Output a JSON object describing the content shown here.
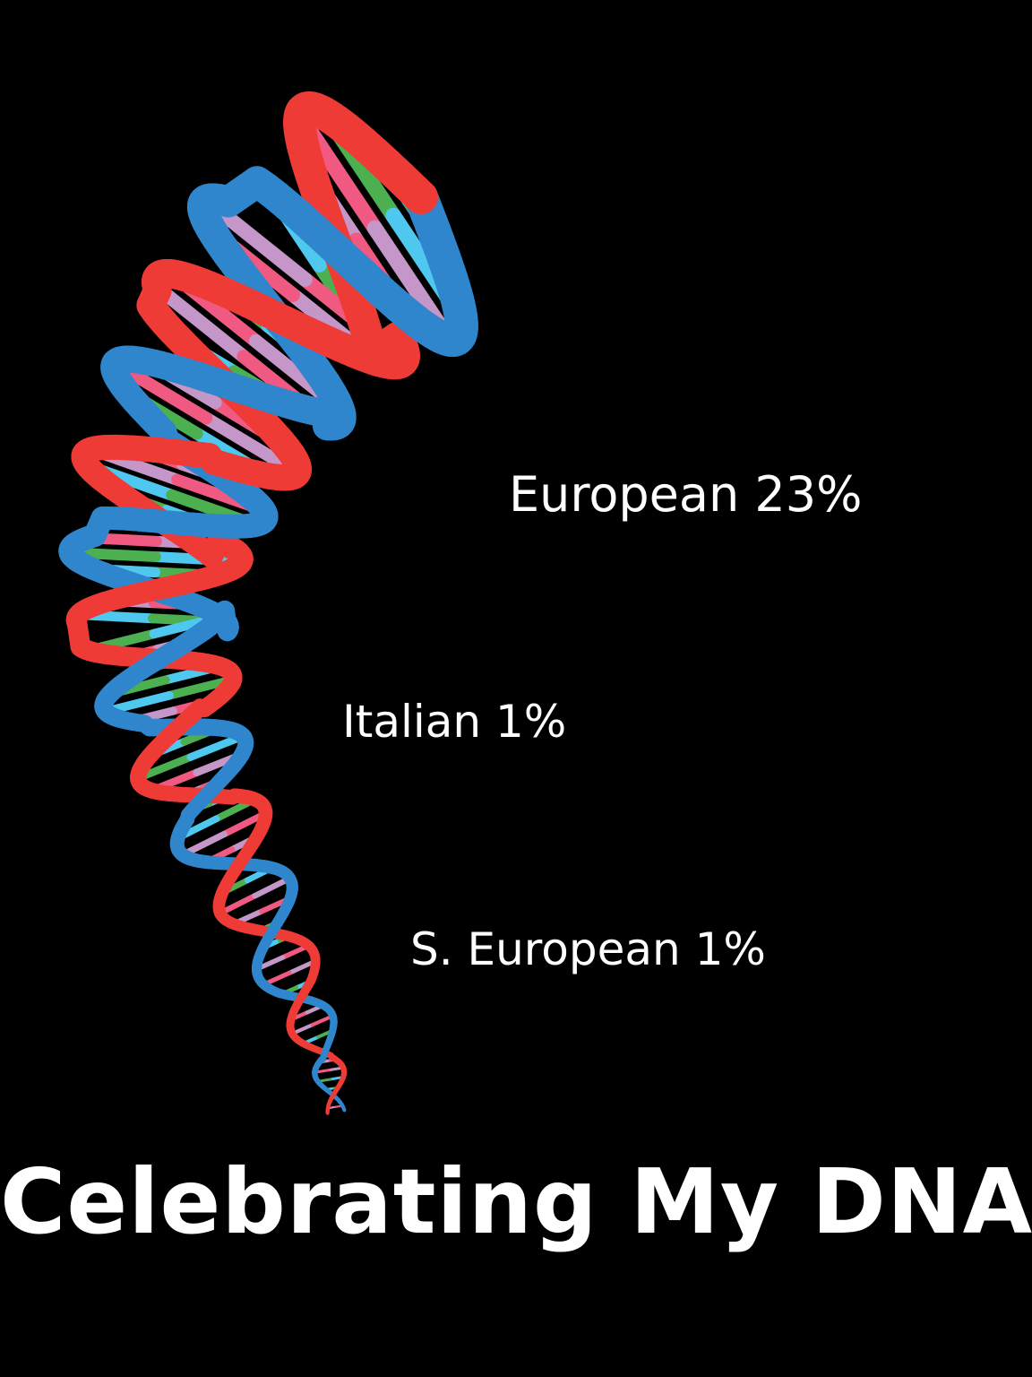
{
  "poster": {
    "title": "Celebrating My DNA!",
    "labels": [
      {
        "text": "European 23%"
      },
      {
        "text": "Italian 1%"
      },
      {
        "text": "S. European 1%"
      }
    ]
  },
  "helix": {
    "icon": "dna-double-helix-icon",
    "strand_colors": [
      "#ef3b36",
      "#2f86cc"
    ],
    "base_colors": [
      "#4fc8f0",
      "#4caf50",
      "#f05a82",
      "#c596c8"
    ]
  },
  "colors": {
    "background": "#000000",
    "text": "#ffffff"
  }
}
